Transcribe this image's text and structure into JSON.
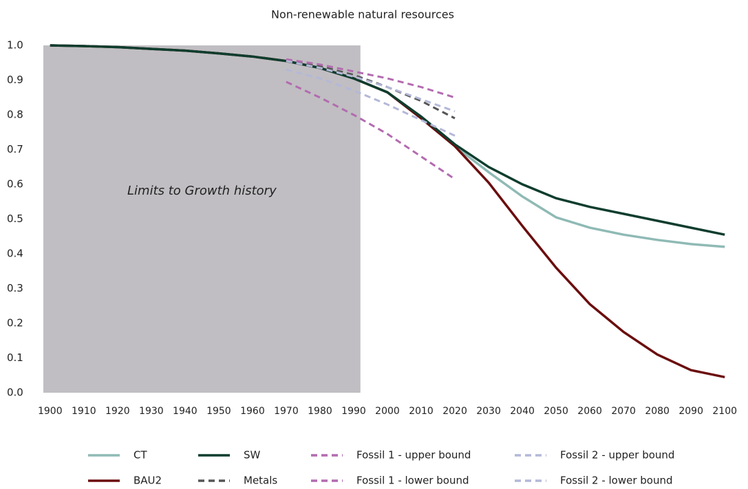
{
  "chart_data": {
    "type": "line",
    "title": "Non-renewable natural resources",
    "annotation": {
      "text": "Limits to Growth history",
      "x_span": [
        1898,
        1992
      ],
      "color": "#c0bec2"
    },
    "xlim": [
      1898,
      2102
    ],
    "ylim": [
      0,
      1
    ],
    "xticks": [
      1900,
      1910,
      1920,
      1930,
      1940,
      1950,
      1960,
      1970,
      1980,
      1990,
      2000,
      2010,
      2020,
      2030,
      2040,
      2050,
      2060,
      2070,
      2080,
      2090,
      2100
    ],
    "yticks": [
      {
        "value": 0,
        "label": "0.0"
      },
      0.1,
      0.2,
      0.3,
      0.4,
      0.5,
      0.6,
      0.7,
      0.8,
      0.9,
      {
        "value": 1,
        "label": "1.0"
      }
    ],
    "series": [
      {
        "name": "CT",
        "color": "#8fbab5",
        "dashed": false,
        "x": [
          1900,
          1910,
          1920,
          1930,
          1940,
          1950,
          1960,
          1970,
          1980,
          1990,
          2000,
          2010,
          2020,
          2030,
          2040,
          2050,
          2060,
          2070,
          2080,
          2090,
          2100
        ],
        "values": [
          1.0,
          0.998,
          0.995,
          0.99,
          0.985,
          0.977,
          0.968,
          0.955,
          0.935,
          0.905,
          0.865,
          0.79,
          0.71,
          0.635,
          0.565,
          0.505,
          0.475,
          0.455,
          0.44,
          0.428,
          0.42
        ]
      },
      {
        "name": "BAU2",
        "color": "#6b0e0e",
        "dashed": false,
        "x": [
          1900,
          1910,
          1920,
          1930,
          1940,
          1950,
          1960,
          1970,
          1980,
          1990,
          2000,
          2010,
          2020,
          2030,
          2040,
          2050,
          2060,
          2070,
          2080,
          2090,
          2100
        ],
        "values": [
          1.0,
          0.998,
          0.995,
          0.99,
          0.985,
          0.977,
          0.968,
          0.955,
          0.935,
          0.905,
          0.865,
          0.79,
          0.71,
          0.605,
          0.48,
          0.36,
          0.255,
          0.175,
          0.11,
          0.065,
          0.045
        ]
      },
      {
        "name": "SW",
        "color": "#0f3d2e",
        "dashed": false,
        "x": [
          1900,
          1910,
          1920,
          1930,
          1940,
          1950,
          1960,
          1970,
          1980,
          1990,
          2000,
          2010,
          2020,
          2030,
          2040,
          2050,
          2060,
          2070,
          2080,
          2090,
          2100
        ],
        "values": [
          1.0,
          0.998,
          0.995,
          0.99,
          0.985,
          0.977,
          0.968,
          0.955,
          0.935,
          0.905,
          0.865,
          0.795,
          0.715,
          0.65,
          0.6,
          0.56,
          0.535,
          0.515,
          0.495,
          0.475,
          0.455
        ]
      },
      {
        "name": "Metals",
        "color": "#555555",
        "dashed": true,
        "x": [
          1970,
          1980,
          1990,
          2000,
          2010,
          2020
        ],
        "values": [
          0.955,
          0.94,
          0.915,
          0.88,
          0.84,
          0.79
        ]
      },
      {
        "name": "Fossil 1 - upper bound",
        "color": "#b36bb0",
        "dashed": true,
        "x": [
          1970,
          1980,
          1990,
          2000,
          2010,
          2020
        ],
        "values": [
          0.96,
          0.945,
          0.925,
          0.905,
          0.88,
          0.85
        ]
      },
      {
        "name": "Fossil 1 - lower bound",
        "color": "#b36bb0",
        "dashed": true,
        "x": [
          1970,
          1980,
          1990,
          2000,
          2010,
          2020
        ],
        "values": [
          0.895,
          0.85,
          0.8,
          0.745,
          0.68,
          0.615
        ]
      },
      {
        "name": "Fossil 2 - upper bound",
        "color": "#b4b8d8",
        "dashed": true,
        "x": [
          1970,
          1980,
          1990,
          2000,
          2010,
          2020
        ],
        "values": [
          0.955,
          0.935,
          0.91,
          0.88,
          0.845,
          0.81
        ]
      },
      {
        "name": "Fossil 2 - lower bound",
        "color": "#b4b8d8",
        "dashed": true,
        "x": [
          1970,
          1980,
          1990,
          2000,
          2010,
          2020
        ],
        "values": [
          0.93,
          0.905,
          0.87,
          0.83,
          0.785,
          0.74
        ]
      }
    ]
  }
}
